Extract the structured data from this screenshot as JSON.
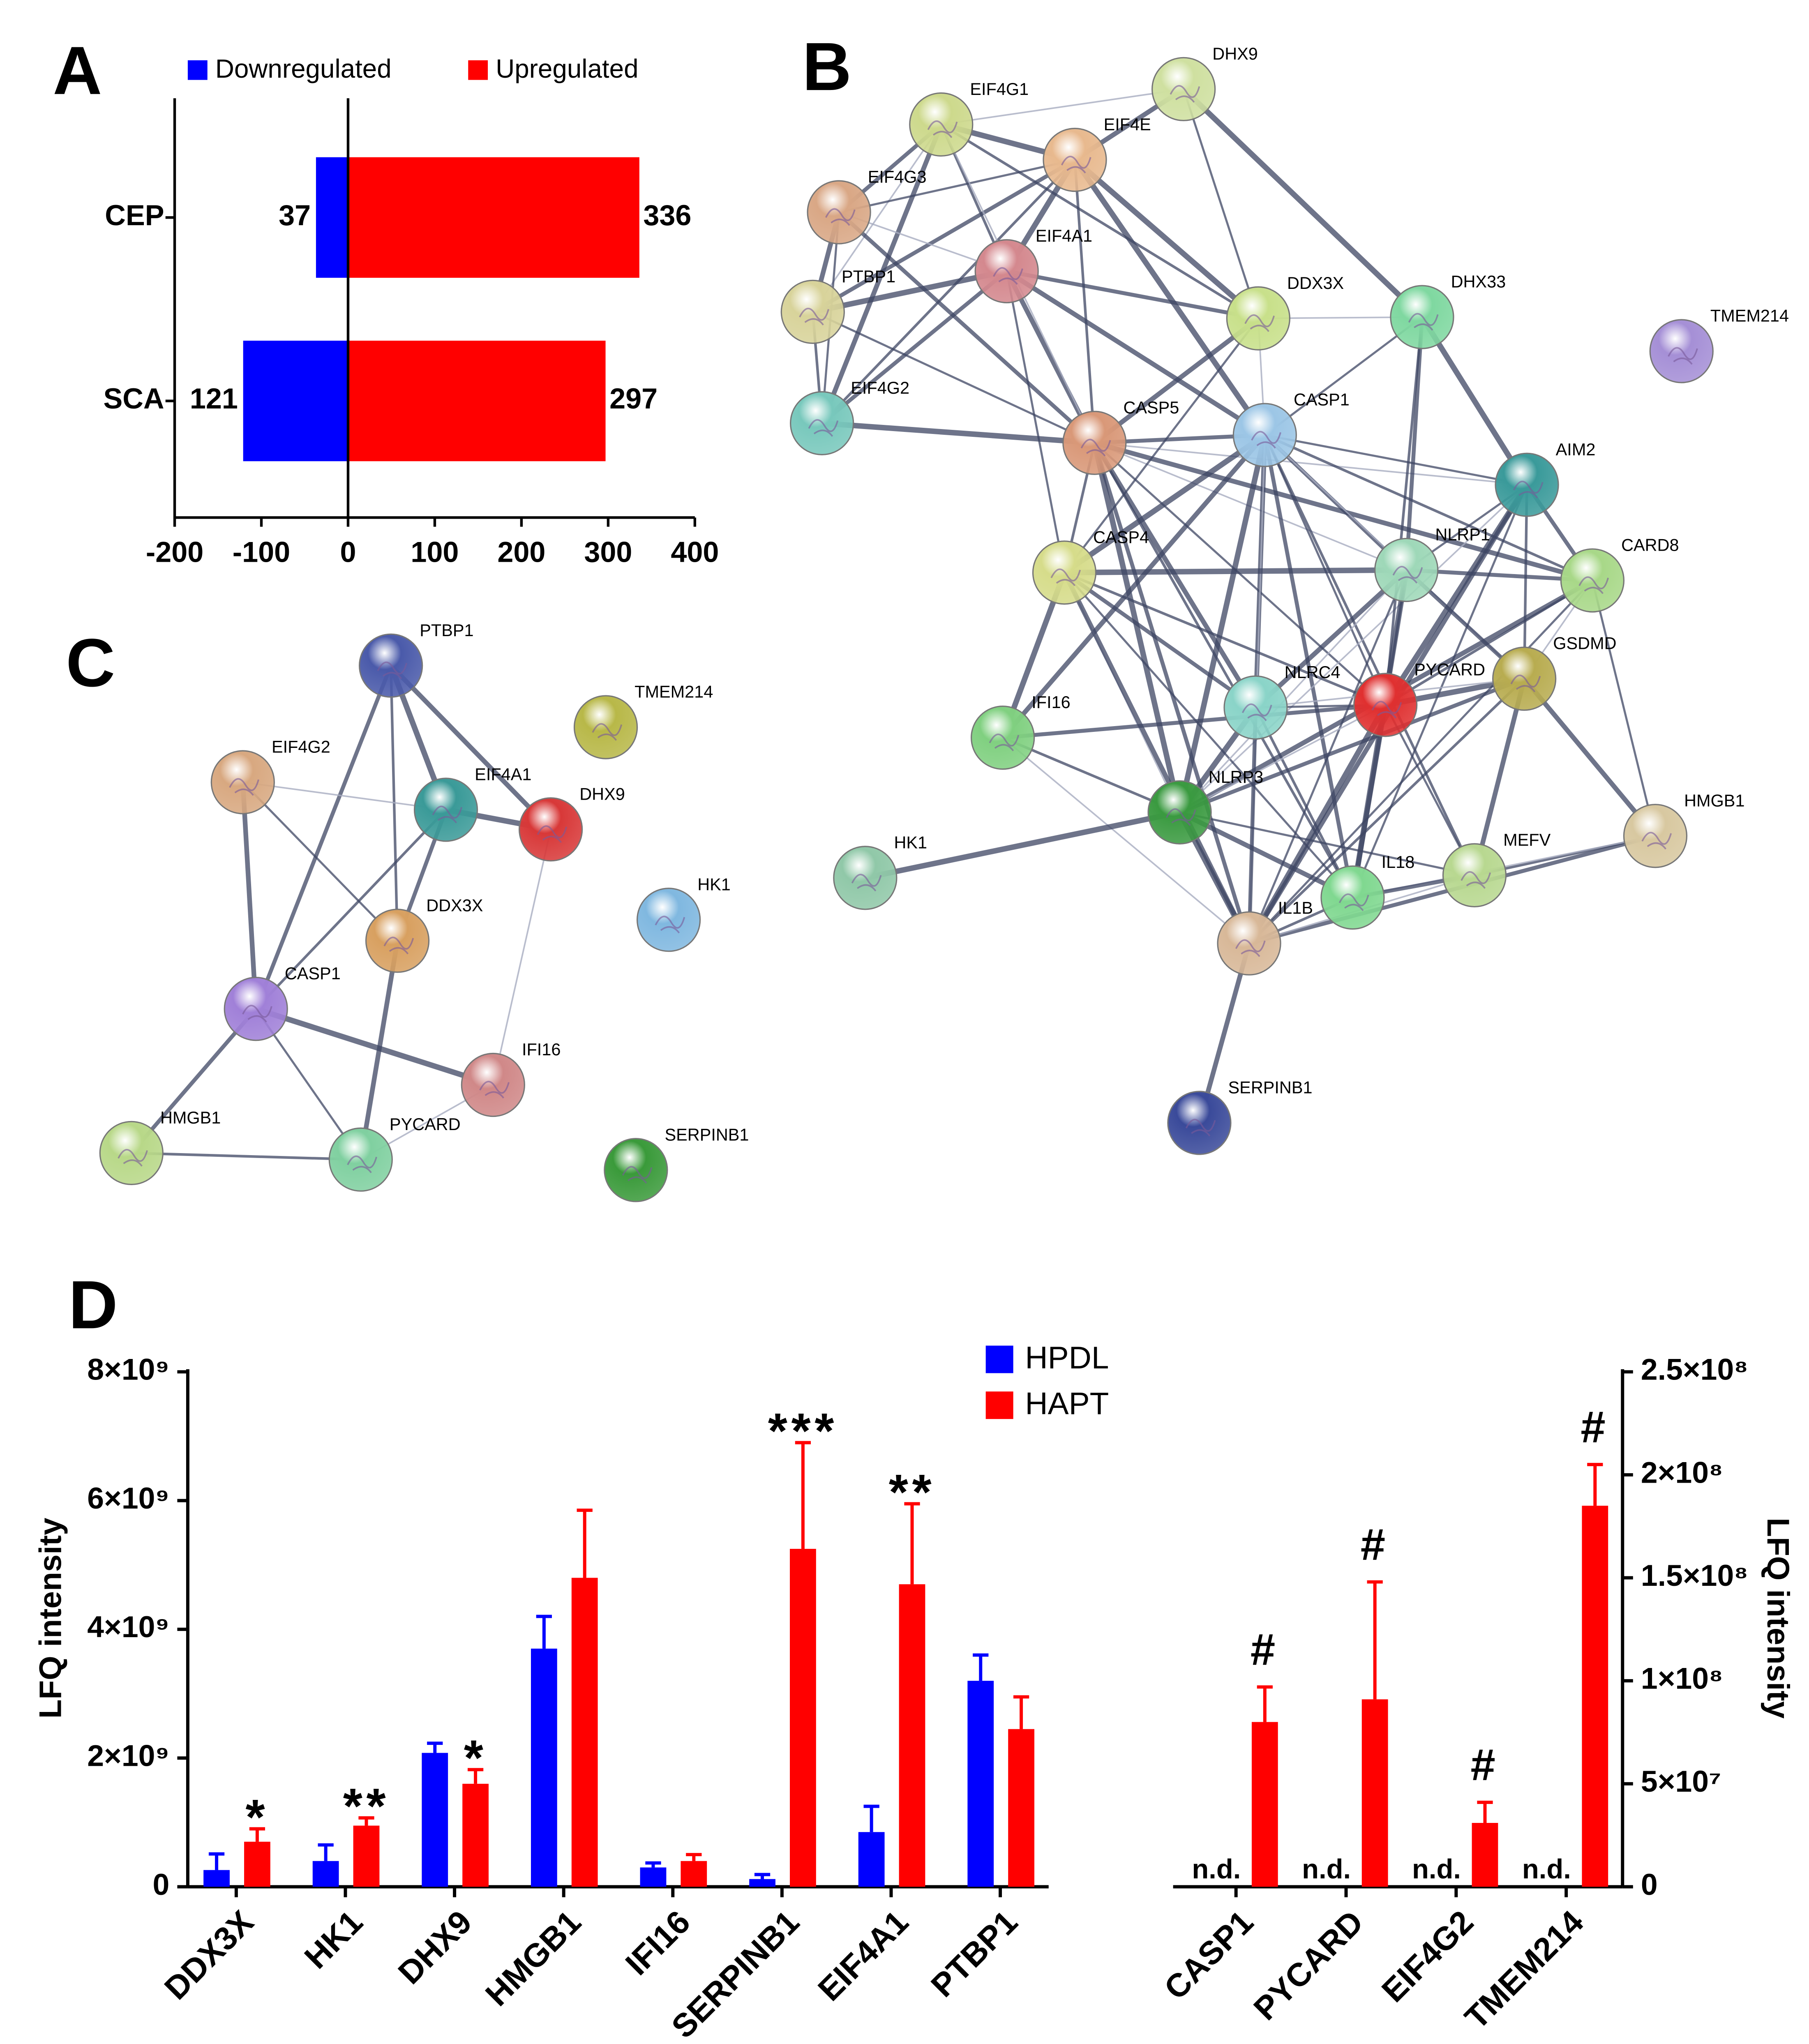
{
  "chart_data": [
    {
      "type": "hbar",
      "label": "A",
      "categories": [
        "CEP",
        "SCA"
      ],
      "series": [
        {
          "name": "Downregulated",
          "color": "#0000ff",
          "values": [
            -37,
            -121
          ],
          "value_labels": [
            "37",
            "121"
          ]
        },
        {
          "name": "Upregulated",
          "color": "#ff0000",
          "values": [
            336,
            297
          ]
        }
      ],
      "xlim": [
        -200,
        400
      ],
      "xticks": [
        -200,
        -100,
        0,
        100,
        200,
        300,
        400
      ]
    },
    {
      "type": "bar",
      "label": "D",
      "ylabel": "LFQ intensity",
      "categories": [
        "DDX3X",
        "HK1",
        "DHX9",
        "HMGB1",
        "IFI16",
        "SERPINB1",
        "EIF4A1",
        "PTBP1"
      ],
      "series": [
        {
          "name": "HPDL",
          "color": "#0000ff",
          "values": [
            260000000,
            400000000,
            2080000000,
            3700000000,
            300000000,
            120000000,
            850000000,
            3200000000
          ],
          "errors": [
            250000000,
            250000000,
            150000000,
            500000000,
            70000000,
            70000000,
            400000000,
            400000000
          ]
        },
        {
          "name": "HAPT",
          "color": "#ff0000",
          "values": [
            700000000,
            950000000,
            1600000000,
            4800000000,
            400000000,
            5250000000,
            4700000000,
            2450000000
          ],
          "errors": [
            200000000,
            120000000,
            220000000,
            1050000000,
            100000000,
            1650000000,
            1250000000,
            500000000
          ]
        }
      ],
      "annotations": [
        "*",
        "**",
        "*",
        null,
        null,
        "***",
        "**",
        null
      ],
      "ylim": [
        0,
        8000000000
      ],
      "yticks": [
        0,
        {
          "value": 2000000000,
          "label": "2×10⁹"
        },
        {
          "value": 4000000000,
          "label": "4×10⁹"
        },
        {
          "value": 6000000000,
          "label": "6×10⁹"
        },
        {
          "value": 8000000000,
          "label": "8×10⁹"
        }
      ]
    },
    {
      "type": "bar",
      "ylabel": "LFQ intensity",
      "categories": [
        "CASP1",
        "PYCARD",
        "EIF4G2",
        "TMEM214"
      ],
      "series": [
        {
          "color": "#0000ff",
          "values": [
            null,
            null,
            null,
            null
          ],
          "value_labels": [
            "n.d.",
            "n.d.",
            "n.d.",
            "n.d."
          ],
          "axis": "y2"
        },
        {
          "color": "#ff0000",
          "values": [
            80000000,
            91000000,
            31000000,
            185000000
          ],
          "errors": [
            17000000,
            57000000,
            10000000,
            20000000
          ],
          "axis": "y2"
        }
      ],
      "annotations": [
        "#",
        "#",
        "#",
        "#"
      ],
      "y2lim": [
        0,
        250000000
      ],
      "y2ticks": [
        0,
        {
          "value": 50000000,
          "label": "5×10⁷"
        },
        {
          "value": 100000000,
          "label": "1×10⁸"
        },
        {
          "value": 150000000,
          "label": "1.5×10⁸"
        },
        {
          "value": 200000000,
          "label": "2×10⁸"
        },
        {
          "value": 250000000,
          "label": "2.5×10⁸"
        }
      ]
    }
  ],
  "networks": [
    {
      "label": "B",
      "nodes": [
        {
          "name": "EIF4G1",
          "color": "#cdd98c"
        },
        {
          "name": "DHX9",
          "color": "#cfe0a0"
        },
        {
          "name": "EIF4E",
          "color": "#e8b98e"
        },
        {
          "name": "EIF4G3",
          "color": "#d9a785"
        },
        {
          "name": "EIF4A1",
          "color": "#d4888e"
        },
        {
          "name": "PTBP1",
          "color": "#d8d39a"
        },
        {
          "name": "DDX3X",
          "color": "#c8e08a"
        },
        {
          "name": "DHX33",
          "color": "#7fd8a0"
        },
        {
          "name": "TMEM214",
          "color": "#a58fd6"
        },
        {
          "name": "EIF4G2",
          "color": "#78c8bc"
        },
        {
          "name": "CASP5",
          "color": "#d99878"
        },
        {
          "name": "CASP1",
          "color": "#9cc6e6"
        },
        {
          "name": "AIM2",
          "color": "#3a9a9a"
        },
        {
          "name": "CASP4",
          "color": "#d6dc8a"
        },
        {
          "name": "NLRP1",
          "color": "#9ed8b8"
        },
        {
          "name": "CARD8",
          "color": "#a8d888"
        },
        {
          "name": "GSDMD",
          "color": "#b8ac50"
        },
        {
          "name": "NLRC4",
          "color": "#8ad4c8"
        },
        {
          "name": "PYCARD",
          "color": "#e03030"
        },
        {
          "name": "IFI16",
          "color": "#80d080"
        },
        {
          "name": "NLRP3",
          "color": "#3a9a40"
        },
        {
          "name": "HMGB1",
          "color": "#d8c8a0"
        },
        {
          "name": "HK1",
          "color": "#90c8a8"
        },
        {
          "name": "IL18",
          "color": "#80d890"
        },
        {
          "name": "MEFV",
          "color": "#b8d890"
        },
        {
          "name": "IL1B",
          "color": "#d8b898"
        },
        {
          "name": "SERPINB1",
          "color": "#3a4a9a"
        }
      ]
    },
    {
      "label": "C",
      "nodes": [
        {
          "name": "PTBP1",
          "color": "#4a5aaa"
        },
        {
          "name": "TMEM214",
          "color": "#b8b848"
        },
        {
          "name": "EIF4G2",
          "color": "#d8a880"
        },
        {
          "name": "EIF4A1",
          "color": "#3a9a98"
        },
        {
          "name": "DHX9",
          "color": "#d83838"
        },
        {
          "name": "HK1",
          "color": "#80b8e0"
        },
        {
          "name": "DDX3X",
          "color": "#d8a060"
        },
        {
          "name": "CASP1",
          "color": "#a080d8"
        },
        {
          "name": "IFI16",
          "color": "#d08888"
        },
        {
          "name": "HMGB1",
          "color": "#b8d888"
        },
        {
          "name": "PYCARD",
          "color": "#80d0a0"
        },
        {
          "name": "SERPINB1",
          "color": "#3a9a3a"
        }
      ]
    }
  ]
}
